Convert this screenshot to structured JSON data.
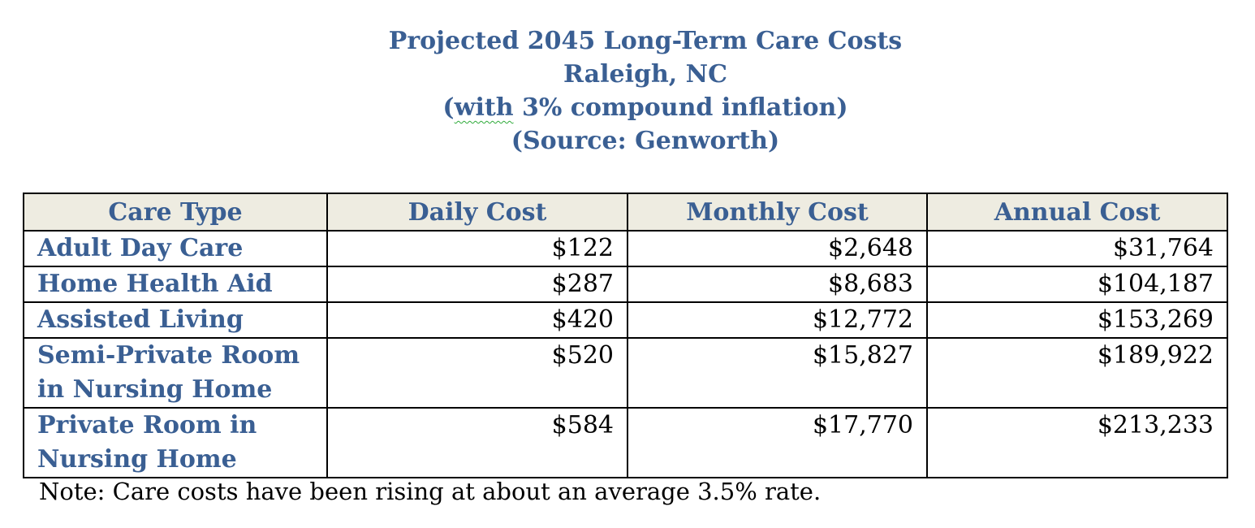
{
  "title": {
    "line1": "Projected 2045 Long-Term Care Costs",
    "line2": "Raleigh, NC",
    "line3_open_paren": "(",
    "line3_squiggle_word": "with",
    "line3_rest": " 3% compound inflation)",
    "line4": "(Source: Genworth)"
  },
  "table": {
    "headers": [
      "Care Type",
      "Daily Cost",
      "Monthly Cost",
      "Annual Cost"
    ],
    "rows": [
      {
        "type_lines": [
          "Adult Day Care"
        ],
        "daily": "$122",
        "monthly": "$2,648",
        "annual": "$31,764"
      },
      {
        "type_lines": [
          "Home Health Aid"
        ],
        "daily": "$287",
        "monthly": "$8,683",
        "annual": "$104,187"
      },
      {
        "type_lines": [
          "Assisted Living"
        ],
        "daily": "$420",
        "monthly": "$12,772",
        "annual": "$153,269"
      },
      {
        "type_lines": [
          "Semi-Private Room",
          "in Nursing Home"
        ],
        "daily": "$520",
        "monthly": "$15,827",
        "annual": "$189,922"
      },
      {
        "type_lines": [
          "Private Room in",
          "Nursing Home"
        ],
        "daily": "$584",
        "monthly": "$17,770",
        "annual": "$213,233"
      }
    ]
  },
  "note": "Note: Care costs have been rising at about an average 3.5% rate.",
  "colors": {
    "title_text": "#3a5f93",
    "header_background": "#eeece1",
    "spellcheck_squiggle": "#2eaa3a"
  }
}
